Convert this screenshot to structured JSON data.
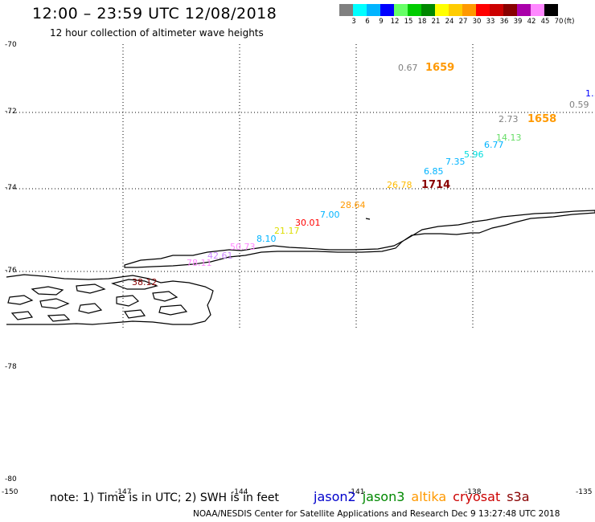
{
  "header": {
    "title": "12:00 – 23:59 UTC 12/08/2018",
    "subtitle": "12 hour collection of altimeter wave heights"
  },
  "color_scale": {
    "unit": "(ft)",
    "labels": [
      "3",
      "6",
      "9",
      "12",
      "15",
      "18",
      "21",
      "24",
      "27",
      "30",
      "33",
      "36",
      "39",
      "42",
      "45",
      "70"
    ],
    "colors": [
      "#808080",
      "#00ffff",
      "#00b4ff",
      "#0000ff",
      "#66ff66",
      "#00cc00",
      "#008800",
      "#ffff00",
      "#ffcc00",
      "#ff9900",
      "#ff0000",
      "#cc0000",
      "#880000",
      "#aa00aa",
      "#ff88ff",
      "#000000"
    ]
  },
  "axes": {
    "lat_labels": [
      "-70",
      "-72",
      "-74",
      "-76",
      "-78",
      "-80"
    ],
    "lon_labels": [
      "-150",
      "-147",
      "-144",
      "-141",
      "-138",
      "-135"
    ]
  },
  "wave_labels": [
    {
      "text": "0.67",
      "color": "#808080"
    },
    {
      "text": "0.59",
      "color": "#808080"
    },
    {
      "text": "1…",
      "color": "#0000ff"
    },
    {
      "text": "2.73",
      "color": "#808080"
    },
    {
      "text": "14.13",
      "color": "#66dd66"
    },
    {
      "text": "6.77",
      "color": "#00b4ff"
    },
    {
      "text": "5.96",
      "color": "#00dddd"
    },
    {
      "text": "7.35",
      "color": "#00b4ff"
    },
    {
      "text": "6.85",
      "color": "#00b4ff"
    },
    {
      "text": "26.78",
      "color": "#ffbb00"
    },
    {
      "text": "28.64",
      "color": "#ff9900"
    },
    {
      "text": "7.00",
      "color": "#00b4ff"
    },
    {
      "text": "30.01",
      "color": "#ff0000"
    },
    {
      "text": "21.17",
      "color": "#dddd00"
    },
    {
      "text": "8.10",
      "color": "#00b4ff"
    },
    {
      "text": "50.73",
      "color": "#ff88ff"
    },
    {
      "text": "42.61",
      "color": "#cc88ff"
    },
    {
      "text": "78.11",
      "color": "#ff88ff"
    },
    {
      "text": "38.12",
      "color": "#880000"
    }
  ],
  "time_labels": [
    {
      "text": "1659",
      "color": "#ff9900"
    },
    {
      "text": "1658",
      "color": "#ff9900"
    },
    {
      "text": "1714",
      "color": "#880000"
    }
  ],
  "footer": {
    "note": "note: 1) Time is in UTC; 2) SWH is in feet",
    "missions": [
      {
        "name": "jason2",
        "color": "#0000cc"
      },
      {
        "name": "jason3",
        "color": "#008800"
      },
      {
        "name": "altika",
        "color": "#ff9900"
      },
      {
        "name": "cryosat",
        "color": "#cc0000"
      },
      {
        "name": "s3a",
        "color": "#880000"
      }
    ],
    "credit": "NOAA/NESDIS Center for Satellite Applications and Research   Dec  9 13:27:48 UTC 2018"
  }
}
